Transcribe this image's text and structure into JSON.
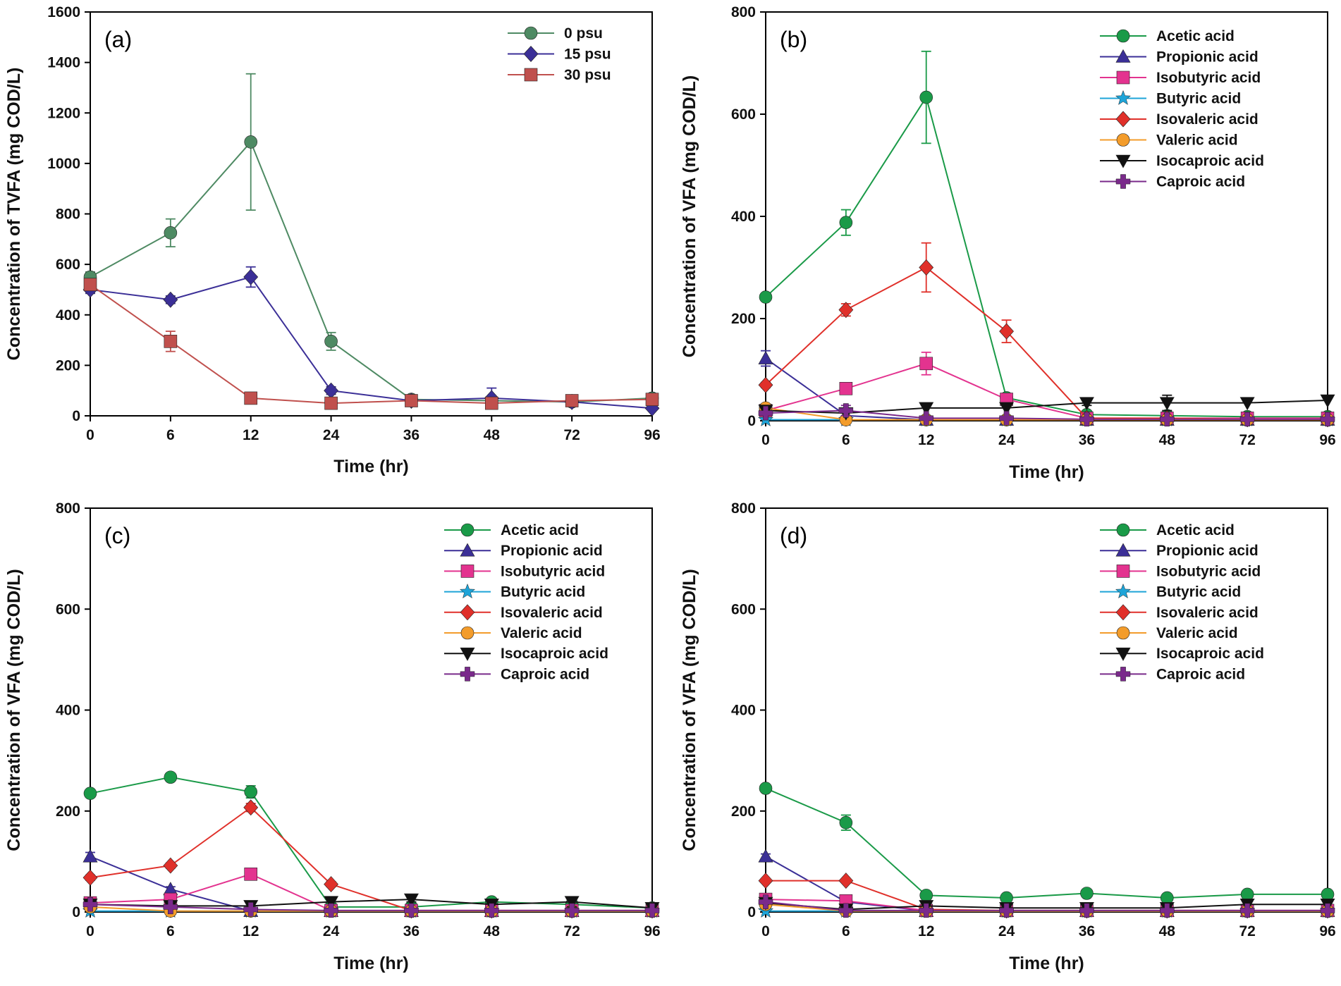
{
  "chart_data": [
    {
      "type": "line",
      "panel_label": "(a)",
      "xlabel": "Time (hr)",
      "ylabel": "Concentration of TVFA (mg COD/L)",
      "categories": [
        "0",
        "6",
        "12",
        "24",
        "36",
        "48",
        "72",
        "96"
      ],
      "ylim": [
        0,
        1600
      ],
      "yticks": [
        "0",
        "200",
        "400",
        "600",
        "800",
        "1000",
        "1200",
        "1400",
        "1600"
      ],
      "legend_position": "top-right",
      "series": [
        {
          "name": "0 psu",
          "color": "#4e8a63",
          "marker": "circle",
          "values": [
            550,
            725,
            1085,
            295,
            65,
            60,
            55,
            70
          ],
          "errors": [
            20,
            55,
            270,
            35,
            10,
            10,
            8,
            8
          ]
        },
        {
          "name": "15 psu",
          "color": "#3b2f97",
          "marker": "diamond",
          "values": [
            500,
            460,
            550,
            100,
            60,
            70,
            55,
            30
          ],
          "errors": [
            15,
            15,
            40,
            15,
            10,
            40,
            8,
            5
          ]
        },
        {
          "name": "30 psu",
          "color": "#c0504d",
          "marker": "square",
          "values": [
            520,
            295,
            70,
            50,
            60,
            50,
            60,
            65
          ],
          "errors": [
            15,
            40,
            10,
            8,
            8,
            8,
            8,
            8
          ]
        }
      ]
    },
    {
      "type": "line",
      "panel_label": "(b)",
      "xlabel": "Time (hr)",
      "ylabel": "Concentration of VFA (mg COD/L)",
      "categories": [
        "0",
        "6",
        "12",
        "24",
        "36",
        "48",
        "72",
        "96"
      ],
      "ylim": [
        0,
        800
      ],
      "yticks": [
        "0",
        "200",
        "400",
        "600",
        "800"
      ],
      "legend_position": "top-right",
      "series": [
        {
          "name": "Acetic acid",
          "color": "#1a9a48",
          "marker": "circle",
          "values": [
            242,
            388,
            633,
            45,
            12,
            10,
            8,
            8
          ],
          "errors": [
            5,
            25,
            90,
            5,
            3,
            3,
            3,
            3
          ]
        },
        {
          "name": "Propionic acid",
          "color": "#3b2f97",
          "marker": "triangle",
          "values": [
            122,
            10,
            2,
            2,
            2,
            2,
            2,
            2
          ],
          "errors": [
            15,
            0,
            0,
            0,
            0,
            0,
            0,
            0
          ]
        },
        {
          "name": "Isobutyric acid",
          "color": "#e3338f",
          "marker": "square",
          "values": [
            20,
            63,
            112,
            42,
            5,
            5,
            5,
            5
          ],
          "errors": [
            3,
            5,
            22,
            5,
            0,
            0,
            0,
            0
          ]
        },
        {
          "name": "Butyric acid",
          "color": "#1ea4d8",
          "marker": "star",
          "values": [
            2,
            2,
            2,
            2,
            2,
            2,
            2,
            2
          ],
          "errors": [
            0,
            0,
            0,
            0,
            0,
            0,
            0,
            0
          ]
        },
        {
          "name": "Isovaleric acid",
          "color": "#e0302a",
          "marker": "diamond",
          "values": [
            70,
            217,
            300,
            175,
            5,
            5,
            3,
            3
          ],
          "errors": [
            5,
            12,
            48,
            22,
            0,
            0,
            0,
            0
          ]
        },
        {
          "name": "Valeric acid",
          "color": "#f39c2b",
          "marker": "circle",
          "values": [
            25,
            2,
            2,
            2,
            2,
            2,
            2,
            2
          ],
          "errors": [
            0,
            0,
            0,
            0,
            0,
            0,
            0,
            0
          ]
        },
        {
          "name": "Isocaproic acid",
          "color": "#111111",
          "marker": "down-triangle",
          "values": [
            20,
            15,
            25,
            25,
            35,
            35,
            35,
            40
          ],
          "errors": [
            0,
            0,
            0,
            0,
            5,
            15,
            0,
            0
          ]
        },
        {
          "name": "Caproic acid",
          "color": "#7a2a8b",
          "marker": "cross",
          "values": [
            15,
            20,
            5,
            5,
            3,
            3,
            3,
            3
          ],
          "errors": [
            0,
            10,
            0,
            0,
            0,
            0,
            0,
            0
          ]
        }
      ]
    },
    {
      "type": "line",
      "panel_label": "(c)",
      "xlabel": "Time (hr)",
      "ylabel": "Concentration of VFA (mg COD/L)",
      "categories": [
        "0",
        "6",
        "12",
        "24",
        "36",
        "48",
        "72",
        "96"
      ],
      "ylim": [
        0,
        800
      ],
      "yticks": [
        "0",
        "200",
        "400",
        "600",
        "800"
      ],
      "legend_position": "top-right",
      "series": [
        {
          "name": "Acetic acid",
          "color": "#1a9a48",
          "marker": "circle",
          "values": [
            235,
            267,
            238,
            10,
            10,
            20,
            15,
            8
          ],
          "errors": [
            5,
            5,
            12,
            3,
            3,
            3,
            3,
            3
          ]
        },
        {
          "name": "Propionic acid",
          "color": "#3b2f97",
          "marker": "triangle",
          "values": [
            110,
            45,
            2,
            2,
            2,
            2,
            2,
            2
          ],
          "errors": [
            8,
            5,
            0,
            0,
            0,
            0,
            0,
            0
          ]
        },
        {
          "name": "Isobutyric acid",
          "color": "#e3338f",
          "marker": "square",
          "values": [
            18,
            25,
            75,
            3,
            3,
            3,
            3,
            3
          ],
          "errors": [
            3,
            3,
            5,
            0,
            0,
            0,
            0,
            0
          ]
        },
        {
          "name": "Butyric acid",
          "color": "#1ea4d8",
          "marker": "star",
          "values": [
            2,
            2,
            2,
            2,
            2,
            2,
            2,
            2
          ],
          "errors": [
            0,
            0,
            0,
            0,
            0,
            0,
            0,
            0
          ]
        },
        {
          "name": "Isovaleric acid",
          "color": "#e0302a",
          "marker": "diamond",
          "values": [
            68,
            92,
            207,
            55,
            3,
            3,
            3,
            3
          ],
          "errors": [
            5,
            5,
            8,
            5,
            0,
            0,
            0,
            0
          ]
        },
        {
          "name": "Valeric acid",
          "color": "#f39c2b",
          "marker": "circle",
          "values": [
            10,
            2,
            2,
            2,
            2,
            2,
            2,
            2
          ],
          "errors": [
            0,
            0,
            0,
            0,
            0,
            0,
            0,
            0
          ]
        },
        {
          "name": "Isocaproic acid",
          "color": "#111111",
          "marker": "down-triangle",
          "values": [
            15,
            12,
            12,
            20,
            25,
            15,
            20,
            8
          ],
          "errors": [
            0,
            0,
            0,
            0,
            5,
            0,
            10,
            0
          ]
        },
        {
          "name": "Caproic acid",
          "color": "#7a2a8b",
          "marker": "cross",
          "values": [
            15,
            10,
            5,
            3,
            3,
            3,
            3,
            3
          ],
          "errors": [
            0,
            0,
            0,
            0,
            0,
            0,
            0,
            0
          ]
        }
      ]
    },
    {
      "type": "line",
      "panel_label": "(d)",
      "xlabel": "Time (hr)",
      "ylabel": "Concentration of VFA (mg COD/L)",
      "categories": [
        "0",
        "6",
        "12",
        "24",
        "36",
        "48",
        "72",
        "96"
      ],
      "ylim": [
        0,
        800
      ],
      "yticks": [
        "0",
        "200",
        "400",
        "600",
        "800"
      ],
      "legend_position": "top-right",
      "series": [
        {
          "name": "Acetic acid",
          "color": "#1a9a48",
          "marker": "circle",
          "values": [
            245,
            177,
            33,
            28,
            37,
            28,
            35,
            35
          ],
          "errors": [
            5,
            15,
            5,
            3,
            3,
            3,
            3,
            3
          ]
        },
        {
          "name": "Propionic acid",
          "color": "#3b2f97",
          "marker": "triangle",
          "values": [
            110,
            20,
            2,
            2,
            2,
            2,
            2,
            2
          ],
          "errors": [
            5,
            3,
            0,
            0,
            0,
            0,
            0,
            0
          ]
        },
        {
          "name": "Isobutyric acid",
          "color": "#e3338f",
          "marker": "square",
          "values": [
            25,
            22,
            3,
            3,
            3,
            3,
            3,
            3
          ],
          "errors": [
            3,
            3,
            0,
            0,
            0,
            0,
            0,
            0
          ]
        },
        {
          "name": "Butyric acid",
          "color": "#1ea4d8",
          "marker": "star",
          "values": [
            2,
            2,
            2,
            2,
            2,
            2,
            2,
            2
          ],
          "errors": [
            0,
            0,
            0,
            0,
            0,
            0,
            0,
            0
          ]
        },
        {
          "name": "Isovaleric acid",
          "color": "#e0302a",
          "marker": "diamond",
          "values": [
            62,
            62,
            5,
            3,
            3,
            3,
            3,
            3
          ],
          "errors": [
            3,
            3,
            0,
            0,
            0,
            0,
            0,
            0
          ]
        },
        {
          "name": "Valeric acid",
          "color": "#f39c2b",
          "marker": "circle",
          "values": [
            15,
            2,
            2,
            2,
            2,
            2,
            2,
            2
          ],
          "errors": [
            0,
            0,
            0,
            0,
            0,
            0,
            0,
            0
          ]
        },
        {
          "name": "Isocaproic acid",
          "color": "#111111",
          "marker": "down-triangle",
          "values": [
            18,
            5,
            12,
            8,
            8,
            8,
            15,
            15
          ],
          "errors": [
            0,
            0,
            0,
            0,
            0,
            0,
            0,
            0
          ]
        },
        {
          "name": "Caproic acid",
          "color": "#7a2a8b",
          "marker": "cross",
          "values": [
            20,
            3,
            3,
            3,
            3,
            3,
            3,
            3
          ],
          "errors": [
            0,
            0,
            0,
            0,
            0,
            0,
            0,
            0
          ]
        }
      ]
    }
  ]
}
